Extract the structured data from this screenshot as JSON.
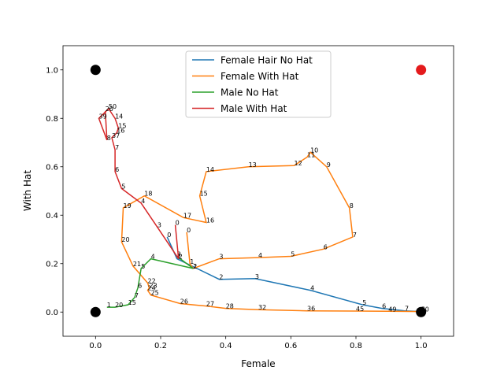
{
  "chart_data": {
    "type": "line",
    "xlabel": "Female",
    "ylabel": "With Hat",
    "xlim": [
      -0.1,
      1.1
    ],
    "ylim": [
      -0.1,
      1.1
    ],
    "x_ticks": [
      "0.0",
      "0.2",
      "0.4",
      "0.6",
      "0.8",
      "1.0"
    ],
    "x_tick_values": [
      0.0,
      0.2,
      0.4,
      0.6,
      0.8,
      1.0
    ],
    "y_ticks": [
      "0.0",
      "0.2",
      "0.4",
      "0.6",
      "0.8",
      "1.0"
    ],
    "y_tick_values": [
      0.0,
      0.2,
      0.4,
      0.6,
      0.8,
      1.0
    ],
    "grid": false,
    "legend_position": "upper center",
    "anchors": [
      {
        "x": 0.0,
        "y": 1.0,
        "color": "#000000"
      },
      {
        "x": 1.0,
        "y": 1.0,
        "color": "#e41a1c"
      },
      {
        "x": 0.0,
        "y": 0.0,
        "color": "#000000"
      },
      {
        "x": 1.0,
        "y": 0.0,
        "color": "#000000"
      }
    ],
    "series": [
      {
        "name": "Female Hair No Hat",
        "color": "#1f77b4",
        "points": [
          {
            "x": 0.22,
            "y": 0.31,
            "label": "0"
          },
          {
            "x": 0.25,
            "y": 0.22,
            "label": "1"
          },
          {
            "x": 0.38,
            "y": 0.135,
            "label": "2"
          },
          {
            "x": 0.49,
            "y": 0.138,
            "label": "3"
          },
          {
            "x": 0.66,
            "y": 0.09,
            "label": "4"
          },
          {
            "x": 0.82,
            "y": 0.03,
            "label": "5"
          },
          {
            "x": 0.88,
            "y": 0.015,
            "label": "6"
          },
          {
            "x": 0.95,
            "y": 0.005,
            "label": "7"
          },
          {
            "x": 1.0,
            "y": 0.002,
            "label": "8"
          }
        ]
      },
      {
        "name": "Female With Hat",
        "color": "#ff7f0e",
        "points": [
          {
            "x": 0.28,
            "y": 0.33,
            "label": "0"
          },
          {
            "x": 0.29,
            "y": 0.2,
            "label": "1"
          },
          {
            "x": 0.3,
            "y": 0.18,
            "label": "2"
          },
          {
            "x": 0.38,
            "y": 0.22,
            "label": "3"
          },
          {
            "x": 0.5,
            "y": 0.225,
            "label": "4"
          },
          {
            "x": 0.6,
            "y": 0.23,
            "label": "5"
          },
          {
            "x": 0.7,
            "y": 0.26,
            "label": "6"
          },
          {
            "x": 0.79,
            "y": 0.31,
            "label": "7"
          },
          {
            "x": 0.78,
            "y": 0.43,
            "label": "8"
          },
          {
            "x": 0.71,
            "y": 0.6,
            "label": "9"
          },
          {
            "x": 0.66,
            "y": 0.66,
            "label": "10"
          },
          {
            "x": 0.65,
            "y": 0.64,
            "label": "11"
          },
          {
            "x": 0.61,
            "y": 0.605,
            "label": "12"
          },
          {
            "x": 0.47,
            "y": 0.6,
            "label": "13"
          },
          {
            "x": 0.34,
            "y": 0.58,
            "label": "14"
          },
          {
            "x": 0.32,
            "y": 0.48,
            "label": "15"
          },
          {
            "x": 0.34,
            "y": 0.37,
            "label": "16"
          },
          {
            "x": 0.27,
            "y": 0.39,
            "label": "17"
          },
          {
            "x": 0.15,
            "y": 0.48,
            "label": "18"
          },
          {
            "x": 0.085,
            "y": 0.43,
            "label": "19"
          },
          {
            "x": 0.08,
            "y": 0.29,
            "label": "20"
          },
          {
            "x": 0.115,
            "y": 0.19,
            "label": "21"
          },
          {
            "x": 0.16,
            "y": 0.12,
            "label": "22"
          },
          {
            "x": 0.165,
            "y": 0.1,
            "label": "23"
          },
          {
            "x": 0.16,
            "y": 0.09,
            "label": "24"
          },
          {
            "x": 0.17,
            "y": 0.07,
            "label": "25"
          },
          {
            "x": 0.26,
            "y": 0.035,
            "label": "26"
          },
          {
            "x": 0.34,
            "y": 0.025,
            "label": "27"
          },
          {
            "x": 0.4,
            "y": 0.015,
            "label": "28"
          },
          {
            "x": 0.5,
            "y": 0.01,
            "label": "32"
          },
          {
            "x": 0.65,
            "y": 0.005,
            "label": "36"
          },
          {
            "x": 0.8,
            "y": 0.004,
            "label": "45"
          },
          {
            "x": 0.9,
            "y": 0.003,
            "label": "49"
          },
          {
            "x": 1.0,
            "y": 0.002,
            "label": "50"
          }
        ]
      },
      {
        "name": "Male No Hat",
        "color": "#2ca02c",
        "points": [
          {
            "x": 0.25,
            "y": 0.23,
            "label": "3"
          },
          {
            "x": 0.3,
            "y": 0.18,
            "label": "1"
          },
          {
            "x": 0.17,
            "y": 0.22,
            "label": "4"
          },
          {
            "x": 0.14,
            "y": 0.18,
            "label": "5"
          },
          {
            "x": 0.13,
            "y": 0.1,
            "label": "6"
          },
          {
            "x": 0.12,
            "y": 0.06,
            "label": "7"
          },
          {
            "x": 0.1,
            "y": 0.03,
            "label": "15"
          },
          {
            "x": 0.06,
            "y": 0.02,
            "label": "20"
          },
          {
            "x": 0.035,
            "y": 0.02,
            "label": "1"
          }
        ]
      },
      {
        "name": "Male With Hat",
        "color": "#d62728",
        "points": [
          {
            "x": 0.245,
            "y": 0.36,
            "label": "0"
          },
          {
            "x": 0.255,
            "y": 0.22,
            "label": "2"
          },
          {
            "x": 0.19,
            "y": 0.35,
            "label": "3"
          },
          {
            "x": 0.14,
            "y": 0.45,
            "label": "4"
          },
          {
            "x": 0.08,
            "y": 0.51,
            "label": "5"
          },
          {
            "x": 0.06,
            "y": 0.58,
            "label": "6"
          },
          {
            "x": 0.06,
            "y": 0.67,
            "label": "7"
          },
          {
            "x": 0.05,
            "y": 0.72,
            "label": "37"
          },
          {
            "x": 0.065,
            "y": 0.74,
            "label": "16"
          },
          {
            "x": 0.07,
            "y": 0.76,
            "label": "15"
          },
          {
            "x": 0.06,
            "y": 0.8,
            "label": "14"
          },
          {
            "x": 0.04,
            "y": 0.84,
            "label": "50"
          },
          {
            "x": 0.01,
            "y": 0.8,
            "label": "39"
          },
          {
            "x": 0.035,
            "y": 0.71,
            "label": "8"
          },
          {
            "x": 0.03,
            "y": 0.83,
            "label": "20"
          }
        ]
      }
    ]
  }
}
